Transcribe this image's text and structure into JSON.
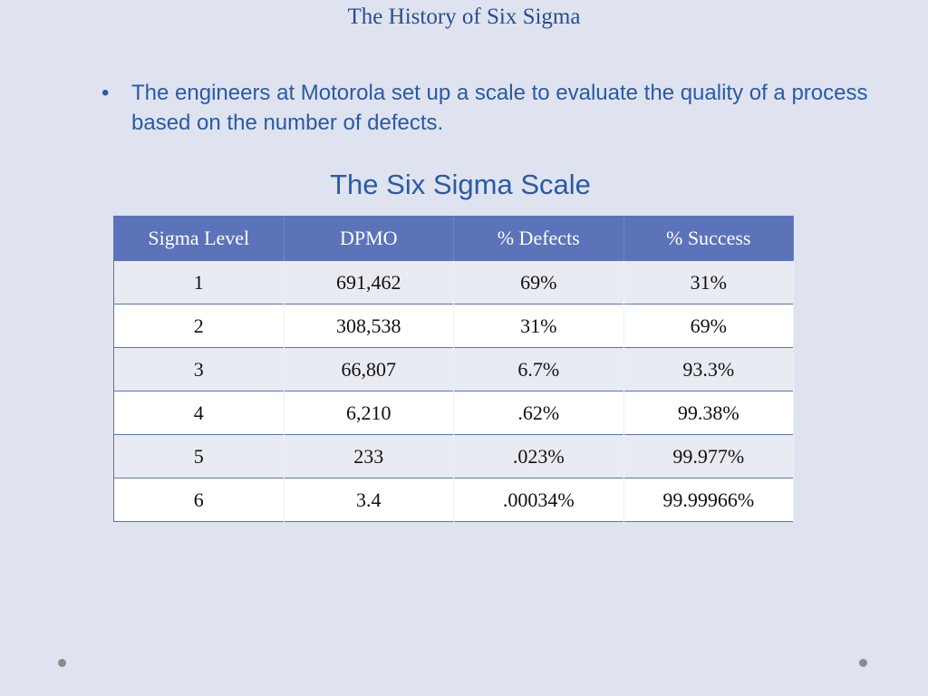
{
  "slide": {
    "title": "The History of Six Sigma",
    "bullet": "The engineers at Motorola set up a scale to evaluate the quality of a process based on the number of defects.",
    "bullet_symbol": "•",
    "table_title": "The Six Sigma Scale"
  },
  "table": {
    "headers": [
      "Sigma Level",
      "DPMO",
      "% Defects",
      "% Success"
    ],
    "rows": [
      [
        "1",
        "691,462",
        "69%",
        "31%"
      ],
      [
        "2",
        "308,538",
        "31%",
        "69%"
      ],
      [
        "3",
        "66,807",
        "6.7%",
        "93.3%"
      ],
      [
        "4",
        "6,210",
        ".62%",
        "99.38%"
      ],
      [
        "5",
        "233",
        ".023%",
        "99.977%"
      ],
      [
        "6",
        "3.4",
        ".00034%",
        "99.99966%"
      ]
    ]
  },
  "colors": {
    "background": "#dfe3ef",
    "title": "#2a4d8f",
    "text": "#2a5aa6",
    "header_fill": "#5b73b8"
  }
}
